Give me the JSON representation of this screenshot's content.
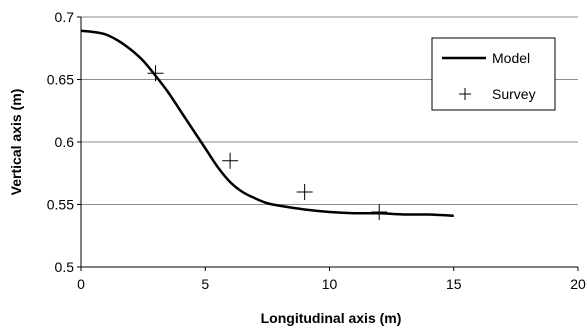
{
  "chart_data": {
    "type": "line",
    "xlabel": "Longitudinal axis (m)",
    "ylabel": "Vertical axis (m)",
    "xlim": [
      0,
      20
    ],
    "ylim": [
      0.5,
      0.7
    ],
    "x_ticks": [
      0,
      5,
      10,
      15,
      20
    ],
    "y_ticks": [
      0.5,
      0.55,
      0.6,
      0.65,
      0.7
    ],
    "x_tick_labels": [
      "0",
      "5",
      "10",
      "15",
      "20"
    ],
    "y_tick_labels": [
      "0.5",
      "0.55",
      "0.6",
      "0.65",
      "0.7"
    ],
    "grid": "horizontal",
    "legend_position": "top-right",
    "series": [
      {
        "name": "Model",
        "style": "line",
        "color": "#000000",
        "x": [
          0,
          0.5,
          1,
          1.5,
          2,
          2.5,
          3,
          3.5,
          4,
          4.5,
          5,
          5.5,
          6,
          6.5,
          7,
          7.5,
          8,
          9,
          10,
          11,
          12,
          13,
          14,
          15
        ],
        "y": [
          0.689,
          0.688,
          0.686,
          0.681,
          0.674,
          0.665,
          0.653,
          0.64,
          0.625,
          0.61,
          0.595,
          0.58,
          0.568,
          0.56,
          0.555,
          0.551,
          0.549,
          0.546,
          0.544,
          0.543,
          0.543,
          0.542,
          0.542,
          0.541
        ]
      },
      {
        "name": "Survey",
        "style": "marker",
        "marker": "plus",
        "color": "#000000",
        "x": [
          3,
          6,
          9,
          12
        ],
        "y": [
          0.655,
          0.585,
          0.56,
          0.544
        ]
      }
    ]
  }
}
